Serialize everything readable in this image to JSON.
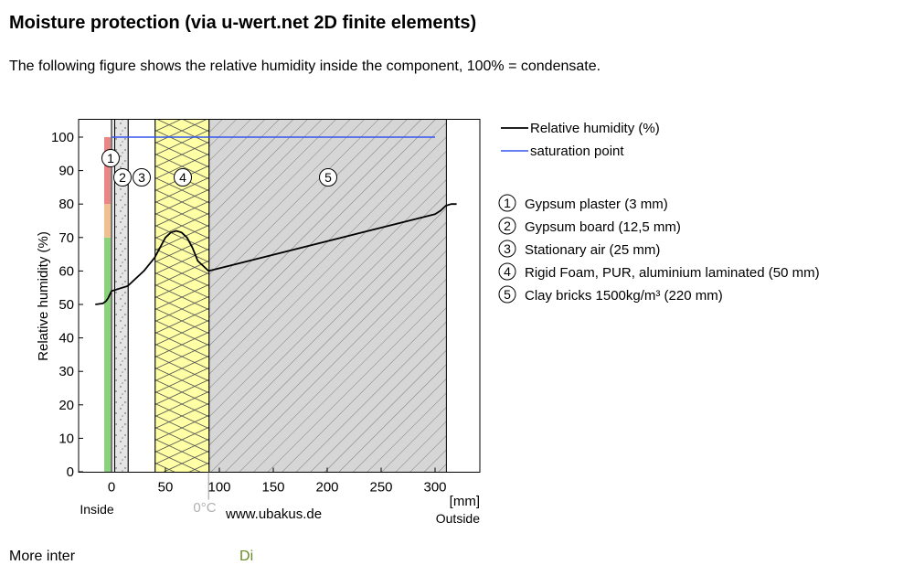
{
  "page": {
    "title": "Moisture protection (via u-wert.net 2D finite elements)",
    "intro": "The following figure shows the relative humidity inside the component, 100% = condensate.",
    "footer_text": "More inter",
    "footer_link": "Di"
  },
  "chart_data": {
    "type": "line",
    "ylabel": "Relative humidity (%)",
    "xunit": "[mm]",
    "xlim": [
      -15,
      340
    ],
    "ylim": [
      0,
      105
    ],
    "xticks": [
      0,
      50,
      100,
      150,
      200,
      250,
      300
    ],
    "yticks": [
      0,
      10,
      20,
      30,
      40,
      50,
      60,
      70,
      80,
      90,
      100
    ],
    "inside_label": "Inside",
    "outside_label": "Outside",
    "freeze_label": "0°C",
    "freeze_x": 90,
    "watermark": "www.ubakus.de",
    "series": [
      {
        "name": "Relative humidity (%)",
        "color": "#000000",
        "points": [
          [
            -15,
            50
          ],
          [
            -8,
            50.3
          ],
          [
            -5,
            51
          ],
          [
            -3,
            52
          ],
          [
            0,
            54
          ],
          [
            3,
            54.3
          ],
          [
            10,
            55
          ],
          [
            15,
            55.5
          ],
          [
            20,
            57
          ],
          [
            30,
            60
          ],
          [
            40,
            64
          ],
          [
            45,
            67
          ],
          [
            50,
            70
          ],
          [
            55,
            71.5
          ],
          [
            60,
            72
          ],
          [
            65,
            71.5
          ],
          [
            70,
            70
          ],
          [
            75,
            67
          ],
          [
            80,
            63
          ],
          [
            85,
            61.5
          ],
          [
            90,
            60
          ],
          [
            300,
            77
          ],
          [
            305,
            78
          ],
          [
            310,
            79.5
          ],
          [
            315,
            80
          ],
          [
            320,
            80
          ]
        ]
      },
      {
        "name": "saturation point",
        "color": "#3355ee",
        "points": [
          [
            0,
            100
          ],
          [
            300,
            100
          ]
        ]
      }
    ],
    "layers": [
      {
        "number": "1",
        "name": "Gypsum plaster (3 mm)",
        "x0": 0,
        "x1": 3,
        "fill": "#e8e8e8",
        "pattern": "none"
      },
      {
        "number": "2",
        "name": "Gypsum board (12,5 mm)",
        "x0": 3,
        "x1": 15.5,
        "fill": "#e5e5e5",
        "pattern": "dots"
      },
      {
        "number": "3",
        "name": "Stationary air (25 mm)",
        "x0": 15.5,
        "x1": 40.5,
        "fill": "#ffffff",
        "pattern": "none"
      },
      {
        "number": "4",
        "name": "Rigid Foam, PUR, aluminium laminated (50 mm)",
        "x0": 40.5,
        "x1": 90.5,
        "fill": "#ffffa5",
        "pattern": "zigzag"
      },
      {
        "number": "5",
        "name": "Clay bricks 1500kg/m³ (220 mm)",
        "x0": 90.5,
        "x1": 310.5,
        "fill": "#d6d6d6",
        "pattern": "hatch"
      }
    ],
    "color_bar": [
      {
        "from": 0,
        "to": 70,
        "color": "#8bd37a"
      },
      {
        "from": 70,
        "to": 80,
        "color": "#f1c08f"
      },
      {
        "from": 80,
        "to": 100,
        "color": "#eb8686"
      }
    ]
  }
}
